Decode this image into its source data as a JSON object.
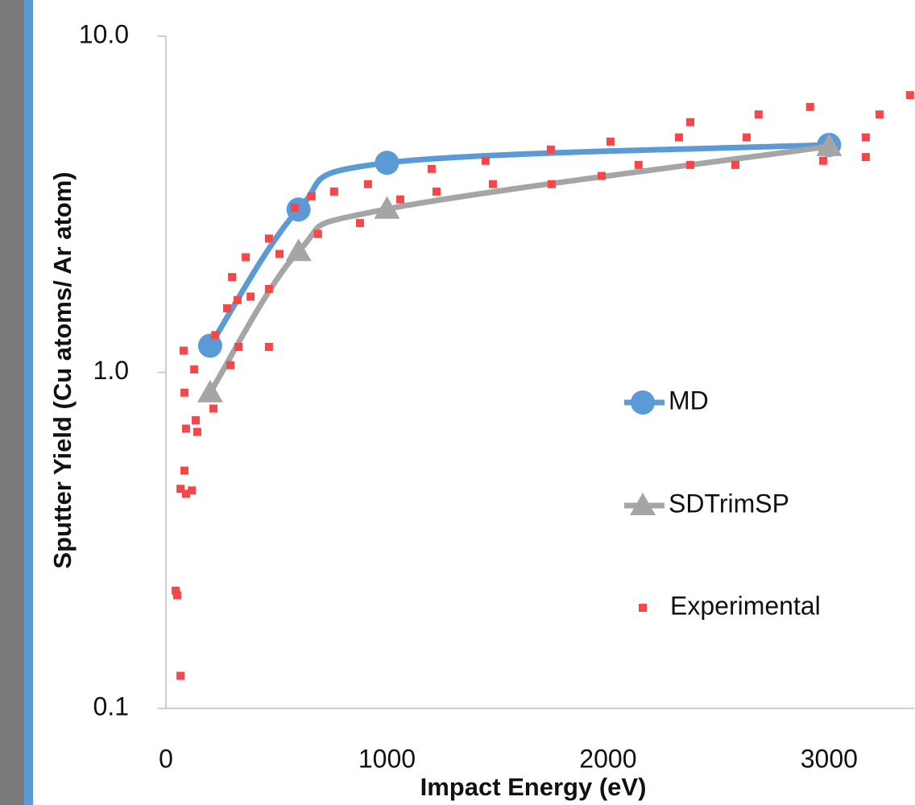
{
  "chart_data": {
    "type": "scatter",
    "xlabel": "Impact Energy (eV)",
    "ylabel": "Sputter Yield (Cu atoms/ Ar atom)",
    "xlim": [
      0,
      3385
    ],
    "xticks": [
      0,
      1000,
      2000,
      3000
    ],
    "ylim": [
      0.1,
      10
    ],
    "ylog": true,
    "yticks": [
      0.1,
      {
        "value": 1,
        "label": "1.0"
      },
      {
        "value": 10,
        "label": "10.0"
      }
    ],
    "legend": "right",
    "series": [
      {
        "name": "MD",
        "color": "#5b9bd5",
        "marker": "circle",
        "line": true,
        "x": [
          200,
          600,
          1000,
          3000
        ],
        "values": [
          1.2,
          3.05,
          4.2,
          4.75
        ]
      },
      {
        "name": "SDTrimSP",
        "color": "#a5a5a5",
        "marker": "triangle",
        "line": true,
        "x": [
          200,
          600,
          1000,
          3000
        ],
        "values": [
          0.87,
          2.29,
          3.06,
          4.7
        ]
      },
      {
        "name": "Experimental",
        "color": "#f5474a",
        "marker": "square",
        "line": false,
        "x": [
          44,
          51,
          66,
          66,
          84,
          91,
          91,
          117,
          128,
          135,
          142,
          80,
          84,
          215,
          223,
          277,
          292,
          299,
          324,
          328,
          361,
          383,
          466,
          466,
          466,
          514,
          583,
          659,
          688,
          761,
          878,
          914,
          1060,
          1202,
          1224,
          1446,
          1479,
          1741,
          1745,
          1971,
          2011,
          2138,
          2321,
          2372,
          2372,
          2576,
          2627,
          2681,
          2914,
          2973,
          3166,
          3166,
          3228,
          3366
        ],
        "values": [
          0.224,
          0.217,
          0.125,
          0.45,
          0.51,
          0.68,
          0.435,
          0.445,
          1.02,
          0.72,
          0.665,
          1.16,
          0.87,
          0.78,
          1.29,
          1.55,
          1.05,
          1.92,
          1.64,
          1.19,
          2.2,
          1.68,
          2.5,
          1.77,
          1.19,
          2.25,
          3.09,
          3.34,
          2.58,
          3.45,
          2.78,
          3.63,
          3.27,
          4.03,
          3.45,
          4.26,
          3.63,
          4.6,
          3.63,
          3.84,
          4.86,
          4.14,
          5.0,
          5.55,
          4.14,
          4.14,
          5.0,
          5.85,
          6.16,
          4.26,
          5.0,
          4.37,
          5.85,
          6.68
        ]
      }
    ]
  }
}
